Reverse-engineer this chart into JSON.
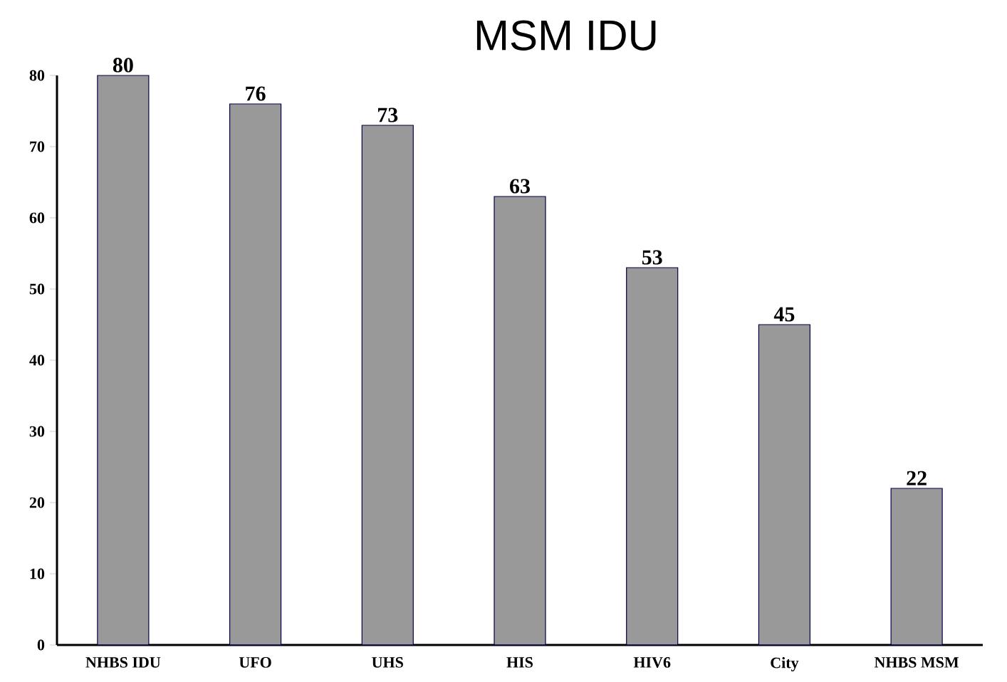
{
  "chart_data": {
    "type": "bar",
    "title": "MSM IDU",
    "categories": [
      "NHBS IDU",
      "UFO",
      "UHS",
      "HIS",
      "HIV6",
      "City",
      "NHBS MSM"
    ],
    "values": [
      80,
      76,
      73,
      63,
      53,
      45,
      22
    ],
    "color": "#999999",
    "ylim": [
      0,
      80
    ],
    "yticks": [
      0,
      10,
      20,
      30,
      40,
      50,
      60,
      70,
      80
    ],
    "data_labels": true,
    "grid": false
  }
}
